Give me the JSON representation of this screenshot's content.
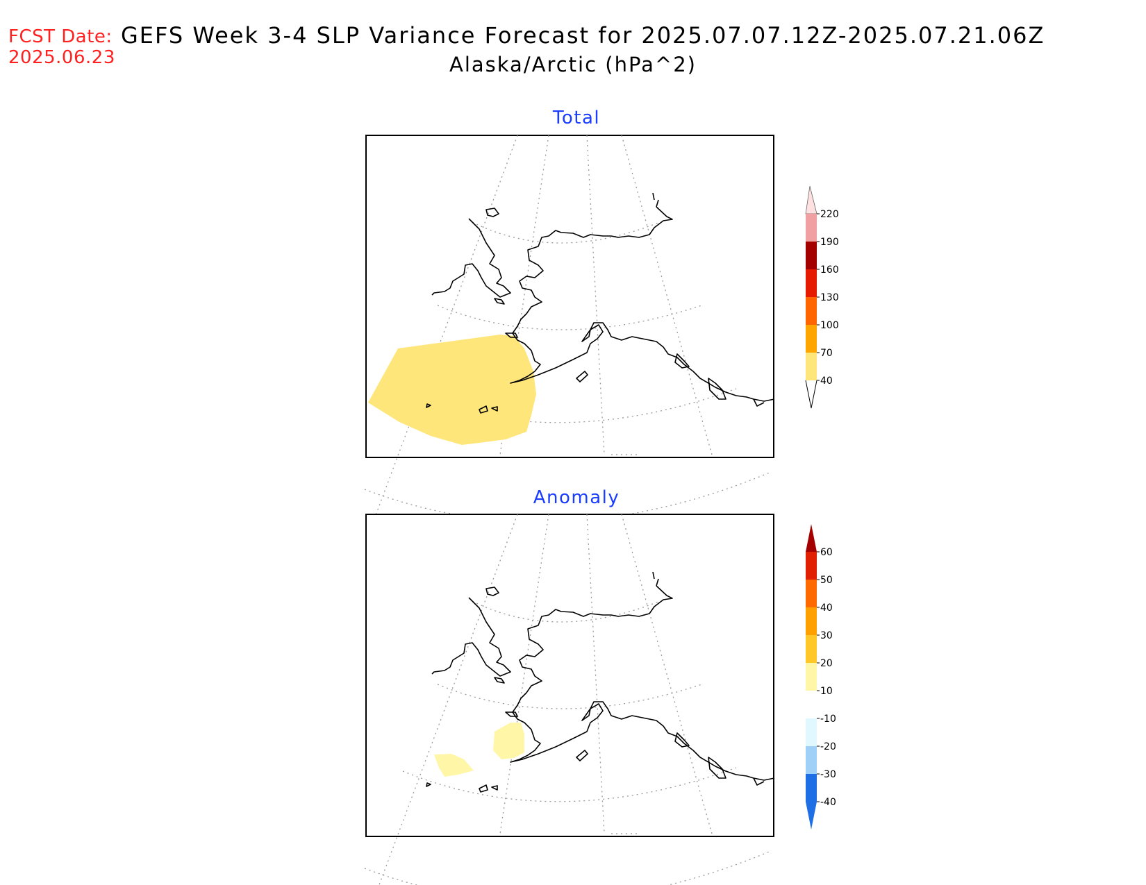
{
  "header": {
    "fcst_label": "FCST Date:",
    "fcst_date": "2025.06.23",
    "title": "GEFS Week 3-4 SLP Variance Forecast for 2025.07.07.12Z-2025.07.21.06Z",
    "subtitle": "Alaska/Arctic (hPa^2)"
  },
  "panels": [
    {
      "title": "Total",
      "colorbar": {
        "levels": [
          "40",
          "70",
          "100",
          "130",
          "160",
          "190",
          "220"
        ],
        "colors": [
          "#ffe67a",
          "#ffa500",
          "#ff6600",
          "#e51a00",
          "#a50000",
          "#f0a0a0",
          "#ffe0e0"
        ]
      }
    },
    {
      "title": "Anomaly",
      "colorbar": {
        "levels": [
          "-40",
          "-30",
          "-20",
          "-10",
          "10",
          "20",
          "30",
          "40",
          "50",
          "60"
        ],
        "colors": [
          "#1e6ee6",
          "#4a9cf0",
          "#9ed0f8",
          "#e0f8ff",
          "#ffffff",
          "#fff6a8",
          "#ffc828",
          "#ffa000",
          "#ff6a00",
          "#e02000",
          "#a50000"
        ]
      }
    }
  ],
  "colors": {
    "fcst_text": "#ff2020",
    "panel_title": "#1a3cff",
    "fill_total": "#ffe67a",
    "fill_anomaly": "#fff6a8"
  }
}
